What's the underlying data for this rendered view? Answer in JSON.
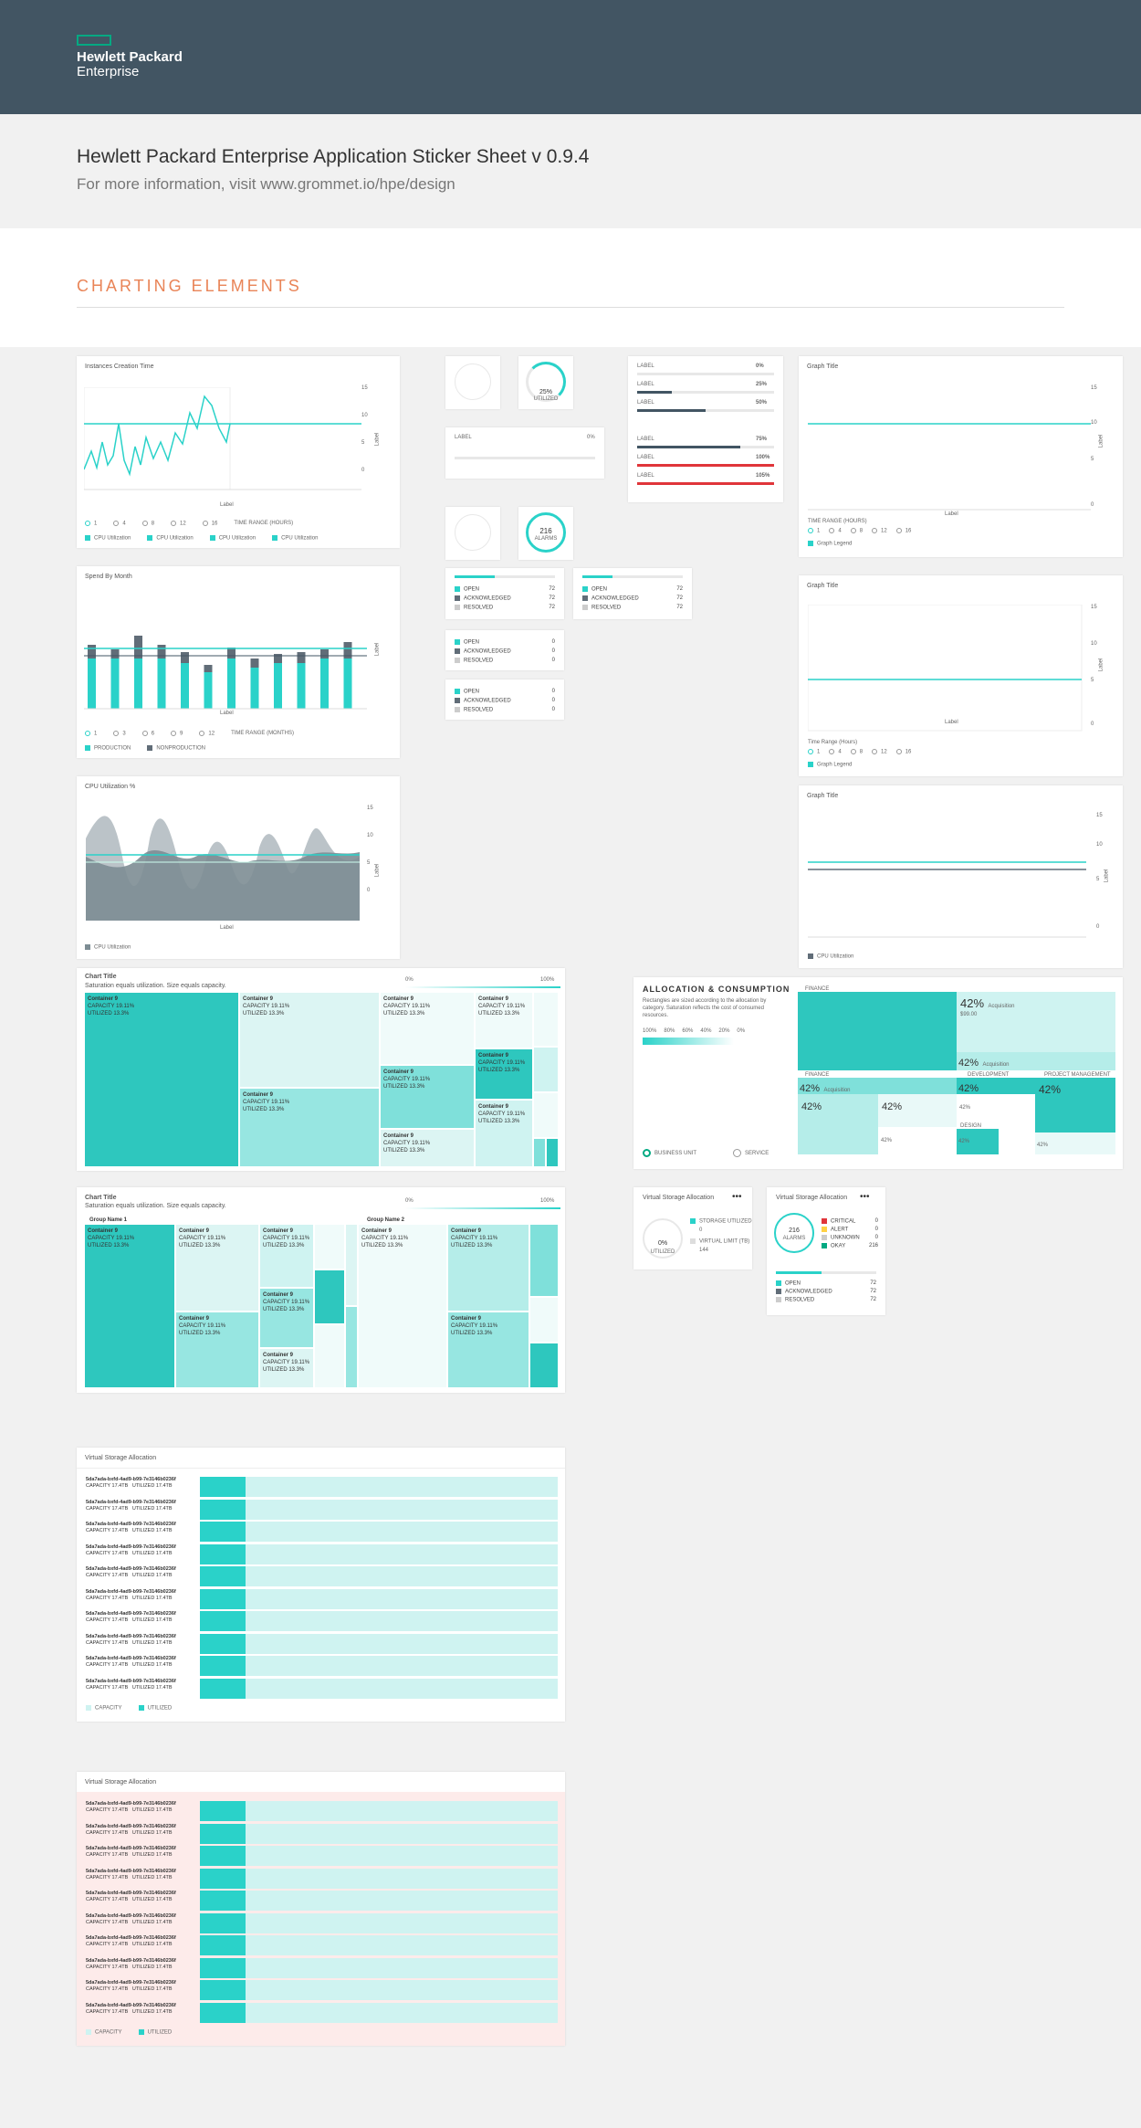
{
  "header": {
    "logo_line1": "Hewlett Packard",
    "logo_line2": "Enterprise"
  },
  "intro": {
    "title": "Hewlett Packard Enterprise Application Sticker Sheet v 0.9.4",
    "subtitle": "For more information, visit www.grommet.io/hpe/design"
  },
  "section": {
    "title": "CHARTING ELEMENTS"
  },
  "c1": {
    "title": "Instances Creation Time",
    "range": "TIME RANGE (HOURS)",
    "ticks": [
      "1",
      "4",
      "8",
      "12",
      "16"
    ],
    "legend": [
      "CPU Utilization",
      "CPU Utilization",
      "CPU Utilization",
      "CPU Utilization"
    ],
    "yticks": [
      "15",
      "10",
      "5",
      "0"
    ],
    "xlabel": "Label",
    "ylabel": "Label"
  },
  "c2": {
    "title": "Spend By Month",
    "range": "TIME RANGE (MONTHS)",
    "ticks": [
      "1",
      "3",
      "6",
      "9",
      "12"
    ],
    "legend": [
      "PRODUCTION",
      "NONPRODUCTION"
    ],
    "xlabel": "Label",
    "ylabel": "Label"
  },
  "c3": {
    "title": "CPU Utilization %",
    "legend": [
      "CPU Utilization"
    ],
    "xlabel": "Label",
    "ylabel": "Label",
    "yticks": [
      "15",
      "10",
      "5",
      "0"
    ]
  },
  "meters": {
    "pct": "25%",
    "utilized": "UTILIZED",
    "alarms": "216",
    "alarms_lbl": "ALARMS",
    "labels": [
      {
        "l": "LABEL",
        "v": "0%"
      },
      {
        "l": "LABEL",
        "v": "25%"
      },
      {
        "l": "LABEL",
        "v": "50%"
      },
      {
        "l": "LABEL",
        "v": "75%"
      },
      {
        "l": "LABEL",
        "v": "100%"
      },
      {
        "l": "LABEL",
        "v": "105%"
      }
    ],
    "small_label": "LABEL",
    "small_v": "0%"
  },
  "status": {
    "open": "OPEN",
    "ack": "ACKNOWLEDGED",
    "res": "RESOLVED",
    "v72": "72",
    "v0": "0"
  },
  "g1": {
    "title": "Graph Title",
    "range": "TIME RANGE (HOURS)",
    "legend": "Graph Legend",
    "ticks": [
      "1",
      "4",
      "8",
      "12",
      "16"
    ],
    "yticks": [
      "15",
      "10",
      "5",
      "0"
    ],
    "xlabel": "Label",
    "ylabel": "Label"
  },
  "g2": {
    "title": "Graph Title",
    "range": "Time Range (Hours)",
    "legend": "Graph Legend",
    "ticks": [
      "1",
      "4",
      "8",
      "12",
      "16"
    ],
    "yticks": [
      "15",
      "10",
      "5",
      "0"
    ],
    "xlabel": "Label",
    "ylabel": "Label"
  },
  "g3": {
    "title": "Graph Title",
    "legend": "CPU Utilization",
    "yticks": [
      "15",
      "10",
      "5",
      "0"
    ],
    "ylabel": "Label"
  },
  "tm1": {
    "title": "Chart Title",
    "sub": "Saturation equals utilization. Size equals capacity.",
    "p0": "0%",
    "p100": "100%",
    "name": "Container 9",
    "cap": "CAPACITY 19.11%",
    "util": "UTILIZED 13.3%"
  },
  "tm2": {
    "title": "Chart Title",
    "sub": "Saturation equals utilization. Size equals capacity.",
    "p0": "0%",
    "p100": "100%",
    "g1": "Group Name 1",
    "g2": "Group Name 2",
    "name": "Container 9",
    "cap": "CAPACITY 19.11%",
    "util": "UTILIZED 13.3%"
  },
  "alloc": {
    "title": "ALLOCATION & CONSUMPTION",
    "desc": "Rectangles are sized according to the allocation by category. Saturation reflects the cost of consumed resources.",
    "scale": [
      "100%",
      "80%",
      "60%",
      "40%",
      "20%",
      "0%"
    ],
    "radio1": "BUSINESS UNIT",
    "radio2": "SERVICE",
    "finance": "FINANCE",
    "development": "DEVELOPMENT",
    "pm": "PROJECT MANAGEMENT",
    "design": "DESIGN",
    "big": "42%",
    "small": "Acquisition",
    "cost": "$99.00",
    "p": "42%"
  },
  "vsa1": {
    "title": "Virtual Storage Allocation",
    "pct": "0%",
    "util": "UTILIZED",
    "s1": "STORAGE UTILIZED",
    "s1v": "0",
    "s2": "VIRTUAL LIMIT (TB)",
    "s2v": "144"
  },
  "vsa2": {
    "title": "Virtual Storage Allocation",
    "alarms": "216",
    "alarms_lbl": "ALARMS",
    "crit": "CRITICAL",
    "crit_v": "0",
    "alert": "ALERT",
    "alert_v": "0",
    "unk": "UNKNOWN",
    "unk_v": "0",
    "okay": "OKAY",
    "okay_v": "216",
    "open": "OPEN",
    "open_v": "72",
    "ack": "ACKNOWLEDGED",
    "ack_v": "72",
    "res": "RESOLVED",
    "res_v": "72"
  },
  "vlist": {
    "title": "Virtual Storage Allocation",
    "row_id": "5da7ada-bxfd-4ad9-b99-7e3146b0236f",
    "cap": "CAPACITY 17.4TB",
    "util": "UTILIZED 17.4TB",
    "legend": [
      "CAPACITY",
      "UTILIZED"
    ]
  },
  "vlist2": {
    "title": "Virtual Storage Allocation",
    "row_id": "5da7ada-bxfd-4ad9-b99-7e3146b0236f",
    "cap": "CAPACITY 17.4TB",
    "util": "UTILIZED 17.4TB",
    "legend": [
      "CAPACITY",
      "UTILIZED"
    ]
  }
}
